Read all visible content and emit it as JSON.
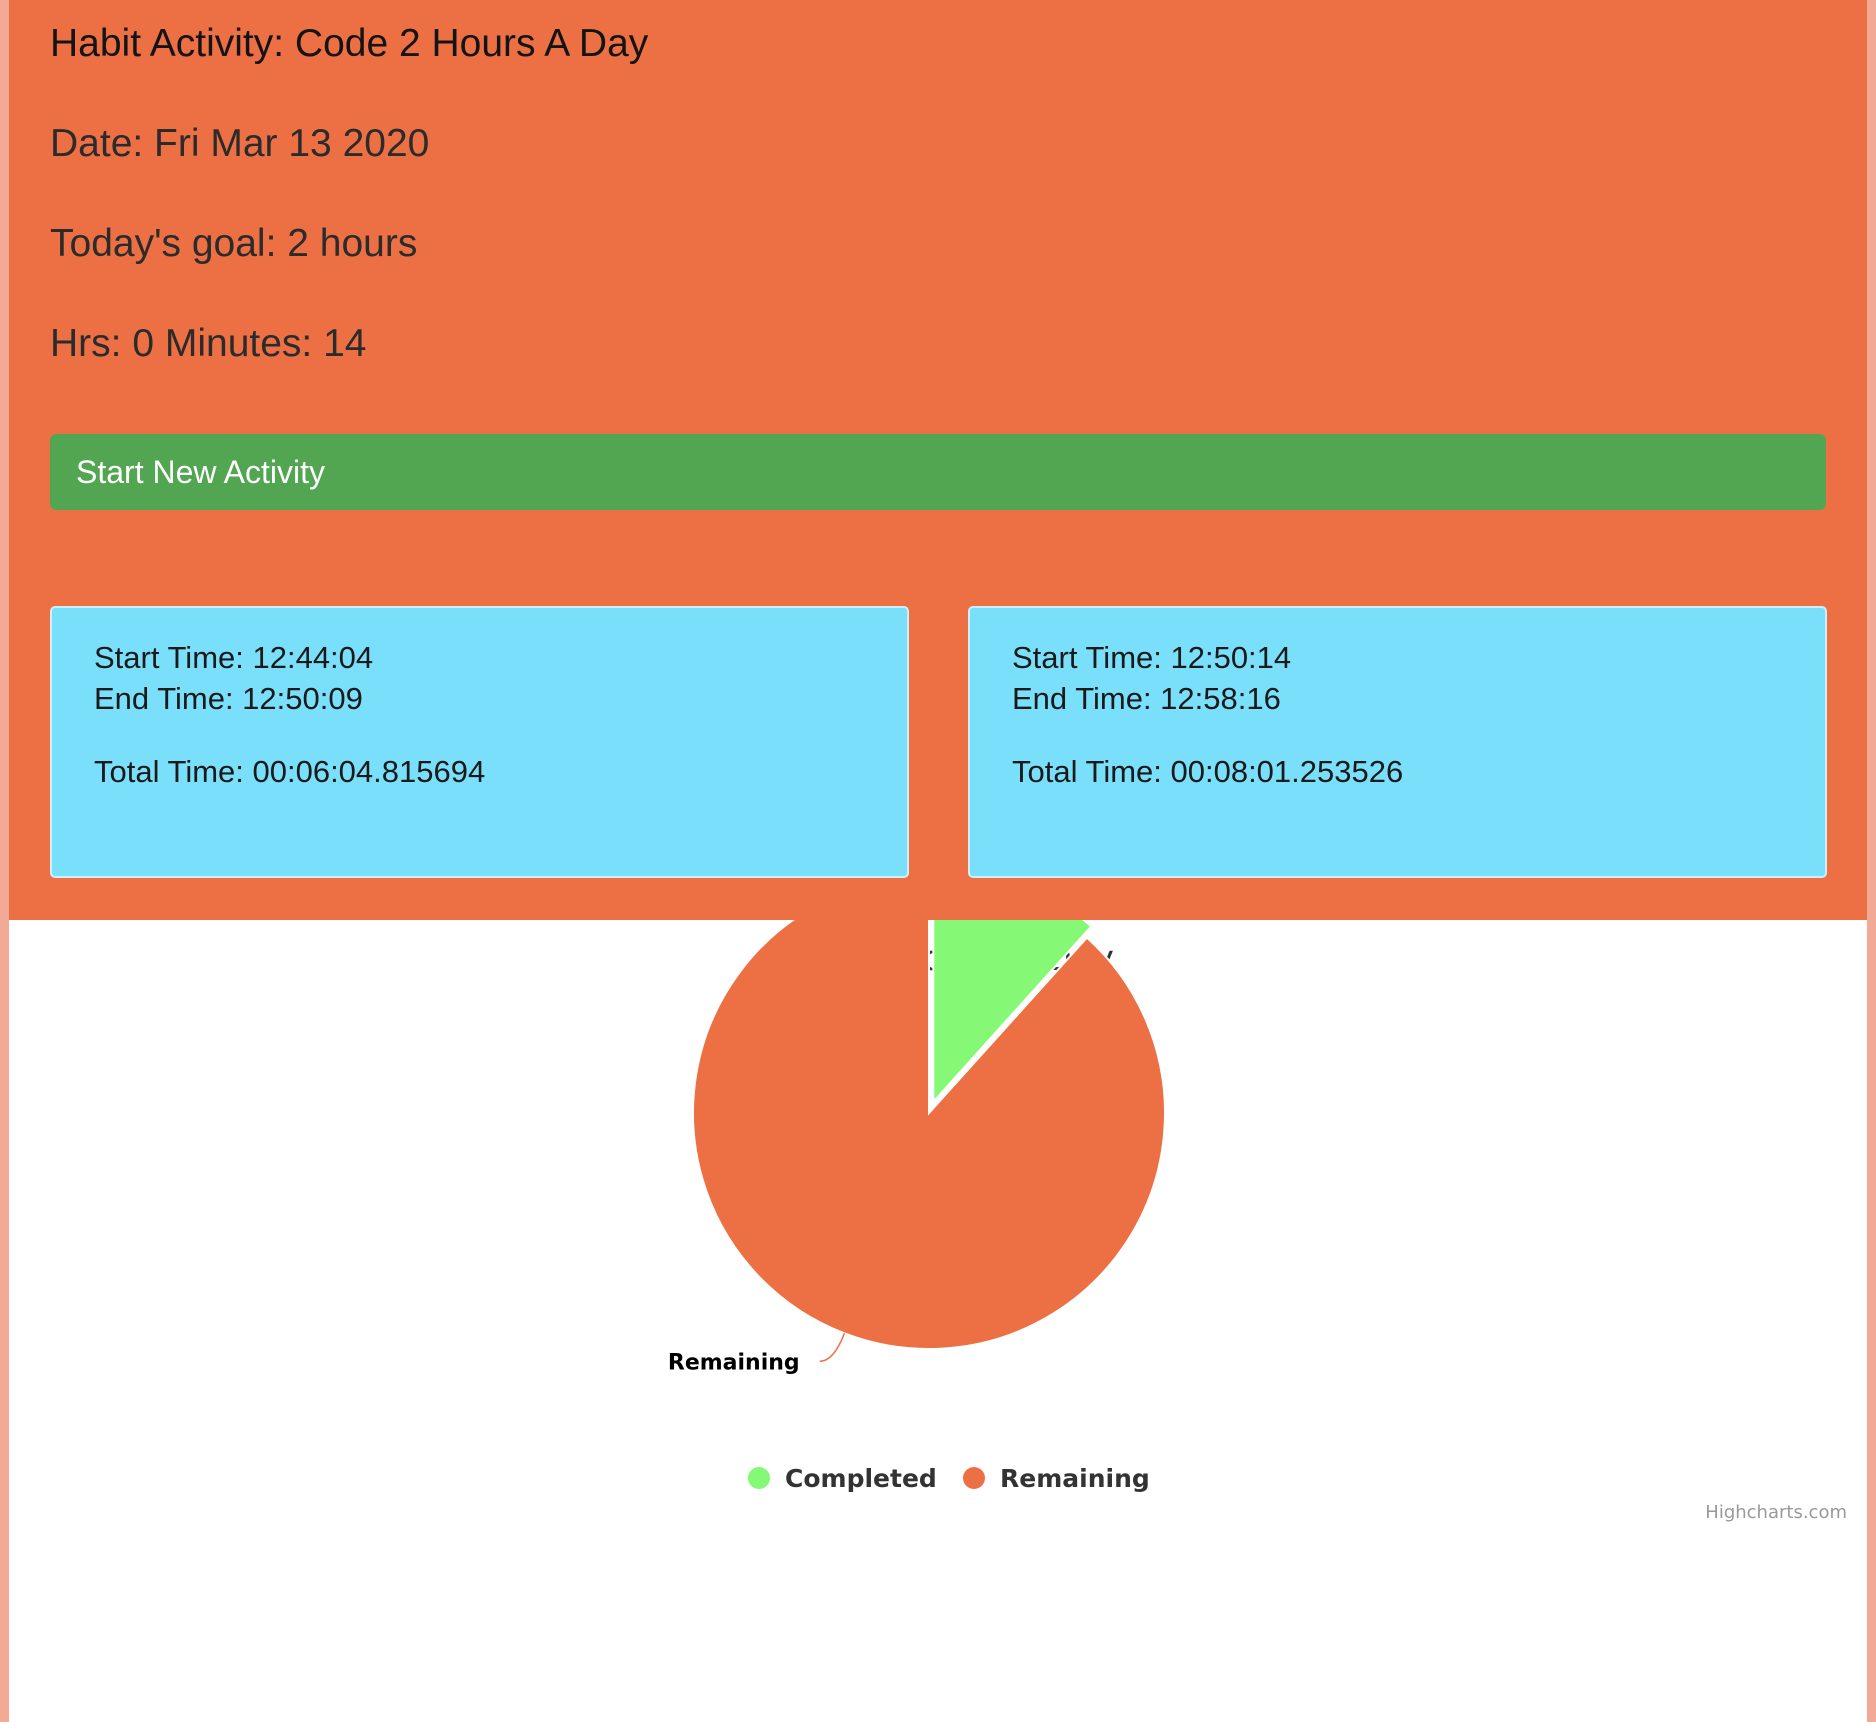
{
  "header": {
    "title": "Habit Activity: Code 2 Hours A Day",
    "date": "Date: Fri Mar 13 2020",
    "goal": "Today's goal: 2 hours",
    "progress": "Hrs: 0 Minutes: 14"
  },
  "start_button": {
    "label": "Start New Activity"
  },
  "activities": [
    {
      "start": "Start Time: 12:44:04",
      "end": "End Time: 12:50:09",
      "total": "Total Time: 00:06:04.815694"
    },
    {
      "start": "Start Time: 12:50:14",
      "end": "End Time: 12:58:16",
      "total": "Total Time: 00:08:01.253526"
    }
  ],
  "colors": {
    "background": "#ed7045",
    "button": "#52a651",
    "card": "#79dffb",
    "completed": "#85f876",
    "remaining": "#ed7045"
  },
  "chart_data": {
    "type": "pie",
    "title": "Code 2 Hours A Day",
    "categories": [
      "Completed",
      "Remaining"
    ],
    "values": [
      14,
      106
    ],
    "sliced": "Completed",
    "legend": "bottom-center",
    "credits": "Highcharts.com"
  }
}
